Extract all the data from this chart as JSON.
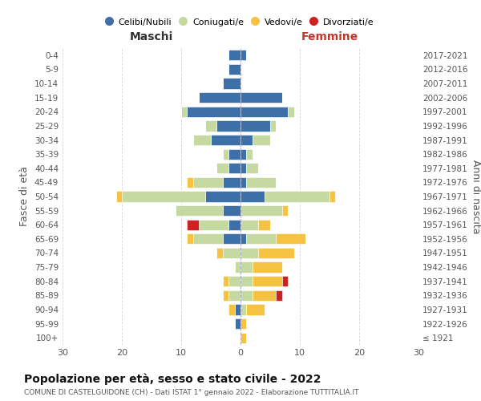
{
  "age_groups": [
    "100+",
    "95-99",
    "90-94",
    "85-89",
    "80-84",
    "75-79",
    "70-74",
    "65-69",
    "60-64",
    "55-59",
    "50-54",
    "45-49",
    "40-44",
    "35-39",
    "30-34",
    "25-29",
    "20-24",
    "15-19",
    "10-14",
    "5-9",
    "0-4"
  ],
  "birth_years": [
    "≤ 1921",
    "1922-1926",
    "1927-1931",
    "1932-1936",
    "1937-1941",
    "1942-1946",
    "1947-1951",
    "1952-1956",
    "1957-1961",
    "1962-1966",
    "1967-1971",
    "1972-1976",
    "1977-1981",
    "1982-1986",
    "1987-1991",
    "1992-1996",
    "1997-2001",
    "2002-2006",
    "2007-2011",
    "2012-2016",
    "2017-2021"
  ],
  "maschi": {
    "celibi": [
      0,
      1,
      1,
      0,
      0,
      0,
      0,
      3,
      2,
      3,
      6,
      3,
      2,
      2,
      5,
      4,
      9,
      7,
      3,
      2,
      2
    ],
    "coniugati": [
      0,
      0,
      0,
      2,
      2,
      1,
      3,
      5,
      5,
      8,
      14,
      5,
      2,
      1,
      3,
      2,
      1,
      0,
      0,
      0,
      0
    ],
    "vedovi": [
      0,
      0,
      1,
      1,
      1,
      0,
      1,
      1,
      0,
      0,
      1,
      1,
      0,
      0,
      0,
      0,
      0,
      0,
      0,
      0,
      0
    ],
    "divorziati": [
      0,
      0,
      0,
      0,
      0,
      0,
      0,
      0,
      2,
      0,
      0,
      0,
      0,
      0,
      0,
      0,
      0,
      0,
      0,
      0,
      0
    ]
  },
  "femmine": {
    "nubili": [
      0,
      0,
      0,
      0,
      0,
      0,
      0,
      1,
      0,
      0,
      4,
      1,
      1,
      1,
      2,
      5,
      8,
      7,
      0,
      0,
      1
    ],
    "coniugate": [
      0,
      0,
      1,
      2,
      2,
      2,
      3,
      5,
      3,
      7,
      11,
      5,
      2,
      1,
      3,
      1,
      1,
      0,
      0,
      0,
      0
    ],
    "vedove": [
      1,
      1,
      3,
      4,
      5,
      5,
      6,
      5,
      2,
      1,
      1,
      0,
      0,
      0,
      0,
      0,
      0,
      0,
      0,
      0,
      0
    ],
    "divorziate": [
      0,
      0,
      0,
      1,
      1,
      0,
      0,
      0,
      0,
      0,
      0,
      0,
      0,
      0,
      0,
      0,
      0,
      0,
      0,
      0,
      0
    ]
  },
  "colors": {
    "celibi_nubili": "#3d6fa8",
    "coniugati_e": "#c5d9a0",
    "vedovi_e": "#f5c242",
    "divorziati_e": "#cc2222"
  },
  "title": "Popolazione per età, sesso e stato civile - 2022",
  "subtitle": "COMUNE DI CASTELGUIDONE (CH) - Dati ISTAT 1° gennaio 2022 - Elaborazione TUTTITALIA.IT",
  "xlabel_left": "Maschi",
  "xlabel_right": "Femmine",
  "ylabel_left": "Fasce di età",
  "ylabel_right": "Anni di nascita",
  "xlim": 30,
  "legend_labels": [
    "Celibi/Nubili",
    "Coniugati/e",
    "Vedovi/e",
    "Divorziati/e"
  ],
  "bg_color": "#ffffff",
  "grid_color": "#cccccc"
}
